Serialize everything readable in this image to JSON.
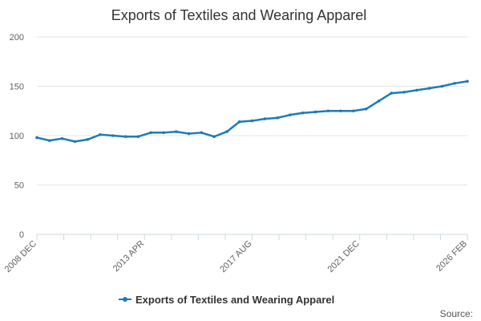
{
  "chart_data": {
    "type": "line",
    "title": "Exports of Textiles and Wearing Apparel",
    "xlabel": "",
    "ylabel": "",
    "ylim": [
      0,
      200
    ],
    "yticks": [
      0,
      50,
      100,
      150,
      200
    ],
    "x_tick_labels": [
      "2008 DEC",
      "2013 APR",
      "2017 AUG",
      "2021 DEC",
      "2026 FEB"
    ],
    "grid": true,
    "legend": "bottom-center",
    "source_label": "Source:",
    "colors": {
      "series": "#1f7bb6",
      "grid": "#e6e6e6",
      "axis": "#ccd6eb"
    },
    "x": [
      "2008 DEC",
      "2009 JUN",
      "2009 DEC",
      "2010 JUN",
      "2010 DEC",
      "2011 JUN",
      "2011 DEC",
      "2012 JUN",
      "2012 DEC",
      "2013 APR",
      "2013 DEC",
      "2014 JUN",
      "2014 DEC",
      "2015 JUN",
      "2015 DEC",
      "2016 JUN",
      "2016 DEC",
      "2017 AUG",
      "2017 DEC",
      "2018 JUN",
      "2018 DEC",
      "2019 JUN",
      "2019 DEC",
      "2020 JUN",
      "2020 DEC",
      "2021 JUN",
      "2021 DEC",
      "2022 JUN",
      "2022 DEC",
      "2023 JUN",
      "2023 DEC",
      "2024 JUN",
      "2024 DEC",
      "2025 JUN",
      "2026 FEB"
    ],
    "series": [
      {
        "name": "Exports of Textiles and Wearing Apparel",
        "values": [
          98,
          95,
          97,
          94,
          96,
          101,
          100,
          99,
          99,
          103,
          103,
          104,
          102,
          103,
          99,
          104,
          114,
          115,
          117,
          118,
          121,
          123,
          124,
          125,
          125,
          125,
          127,
          135,
          143,
          144,
          146,
          148,
          150,
          153,
          155
        ]
      }
    ]
  }
}
